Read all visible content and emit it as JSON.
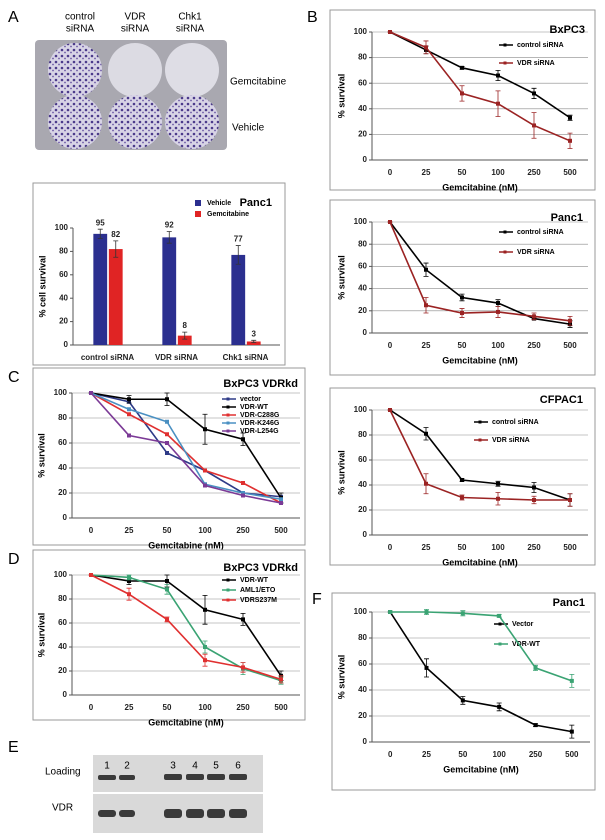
{
  "panel_labels": [
    "A",
    "B",
    "C",
    "D",
    "E",
    "F"
  ],
  "plate": {
    "columns": [
      [
        "control",
        "siRNA"
      ],
      [
        "VDR",
        "siRNA"
      ],
      [
        "Chk1",
        "siRNA"
      ]
    ],
    "rows": [
      "Gemcitabine",
      "Vehicle"
    ]
  },
  "blot": {
    "lanes": [
      "1",
      "2",
      "3",
      "4",
      "5",
      "6"
    ],
    "rows": [
      "Loading",
      "VDR"
    ]
  },
  "chart_data": [
    {
      "type": "bar",
      "title": "Panc1",
      "y_label": "% cell survival",
      "categories": [
        "control siRNA",
        "VDR siRNA",
        "Chk1 siRNA"
      ],
      "ylim": [
        0,
        100
      ],
      "yticks": [
        0,
        20,
        40,
        60,
        80,
        100
      ],
      "grid": false,
      "series": [
        {
          "name": "Vehicle",
          "color": "#2b2f8f",
          "values": [
            95,
            92,
            77
          ],
          "errors": [
            4,
            5,
            8
          ]
        },
        {
          "name": "Gemcitabine",
          "color": "#e02424",
          "values": [
            82,
            8,
            3
          ],
          "errors": [
            7,
            3,
            1
          ]
        }
      ]
    },
    {
      "type": "line",
      "title": "BxPC3",
      "x_label": "Gemcitabine (nM)",
      "y_label": "% survival",
      "categories": [
        "0",
        "25",
        "50",
        "100",
        "250",
        "500"
      ],
      "ylim": [
        0,
        100
      ],
      "yticks": [
        0,
        20,
        40,
        60,
        80,
        100
      ],
      "grid": true,
      "series": [
        {
          "name": "control siRNA",
          "color": "#000000",
          "values": [
            100,
            86,
            72,
            66,
            52,
            33
          ],
          "errors": [
            0,
            3,
            1,
            4,
            4,
            2
          ]
        },
        {
          "name": "VDR siRNA",
          "color": "#9b2323",
          "values": [
            100,
            88,
            52,
            44,
            27,
            15
          ],
          "errors": [
            0,
            5,
            6,
            10,
            10,
            6
          ]
        }
      ]
    },
    {
      "type": "line",
      "title": "Panc1",
      "x_label": "Gemcitabine (nM)",
      "y_label": "% survival",
      "categories": [
        "0",
        "25",
        "50",
        "100",
        "250",
        "500"
      ],
      "ylim": [
        0,
        100
      ],
      "yticks": [
        0,
        20,
        40,
        60,
        80,
        100
      ],
      "grid": true,
      "series": [
        {
          "name": "control siRNA",
          "color": "#000000",
          "values": [
            100,
            57,
            32,
            27,
            13,
            8
          ],
          "errors": [
            0,
            6,
            3,
            3,
            1,
            3
          ]
        },
        {
          "name": "VDR siRNA",
          "color": "#9b2323",
          "values": [
            100,
            25,
            18,
            19,
            15,
            11
          ],
          "errors": [
            0,
            7,
            4,
            5,
            3,
            4
          ]
        }
      ]
    },
    {
      "type": "line",
      "title": "CFPAC1",
      "x_label": "Gemcitabine (nM)",
      "y_label": "% survival",
      "categories": [
        "0",
        "25",
        "50",
        "100",
        "250",
        "500"
      ],
      "ylim": [
        0,
        100
      ],
      "yticks": [
        0,
        20,
        40,
        60,
        80,
        100
      ],
      "grid": true,
      "series": [
        {
          "name": "control siRNA",
          "color": "#000000",
          "values": [
            100,
            81,
            44,
            41,
            38,
            28
          ],
          "errors": [
            0,
            5,
            1,
            2,
            4,
            5
          ]
        },
        {
          "name": "VDR siRNA",
          "color": "#9b2323",
          "values": [
            100,
            41,
            30,
            29,
            28,
            28
          ],
          "errors": [
            0,
            8,
            2,
            5,
            3,
            5
          ]
        }
      ]
    },
    {
      "type": "line",
      "title": "BxPC3 VDRkd",
      "x_label": "Gemcitabine (nM)",
      "y_label": "% survival",
      "categories": [
        "0",
        "25",
        "50",
        "100",
        "250",
        "500"
      ],
      "ylim": [
        0,
        100
      ],
      "yticks": [
        0,
        20,
        40,
        60,
        80,
        100
      ],
      "grid": true,
      "series": [
        {
          "name": "vector",
          "color": "#2e3a87",
          "values": [
            100,
            93,
            52,
            38,
            20,
            17
          ]
        },
        {
          "name": "VDR-WT",
          "color": "#000000",
          "values": [
            100,
            95,
            95,
            71,
            63,
            16
          ],
          "errors": [
            0,
            3,
            5,
            12,
            5,
            4
          ]
        },
        {
          "name": "VDR-C288G",
          "color": "#e03030",
          "values": [
            100,
            83,
            67,
            38,
            28,
            12
          ]
        },
        {
          "name": "VDR-K246G",
          "color": "#4a90c2",
          "values": [
            100,
            87,
            77,
            27,
            20,
            15
          ]
        },
        {
          "name": "VDR-L254G",
          "color": "#7b3a96",
          "values": [
            100,
            66,
            60,
            26,
            18,
            12
          ]
        }
      ]
    },
    {
      "type": "line",
      "title": "BxPC3 VDRkd",
      "x_label": "Gemcitabine (nM)",
      "y_label": "% survival",
      "categories": [
        "0",
        "25",
        "50",
        "100",
        "250",
        "500"
      ],
      "ylim": [
        0,
        100
      ],
      "yticks": [
        0,
        20,
        40,
        60,
        80,
        100
      ],
      "grid": true,
      "series": [
        {
          "name": "VDR-WT",
          "color": "#000000",
          "values": [
            100,
            95,
            95,
            71,
            63,
            16
          ],
          "errors": [
            0,
            3,
            5,
            12,
            5,
            4
          ]
        },
        {
          "name": "AML1/ETO",
          "color": "#3aa373",
          "values": [
            100,
            98,
            88,
            40,
            22,
            12
          ],
          "errors": [
            0,
            2,
            4,
            5,
            5,
            3
          ]
        },
        {
          "name": "VDRS237M",
          "color": "#e03030",
          "values": [
            100,
            84,
            63,
            29,
            23,
            13
          ],
          "errors": [
            0,
            5,
            2,
            5,
            4,
            3
          ]
        }
      ]
    },
    {
      "type": "line",
      "title": "Panc1",
      "x_label": "Gemcitabine (nM)",
      "y_label": "% survival",
      "categories": [
        "0",
        "25",
        "50",
        "100",
        "250",
        "500"
      ],
      "ylim": [
        0,
        100
      ],
      "yticks": [
        0,
        20,
        40,
        60,
        80,
        100
      ],
      "grid": true,
      "series": [
        {
          "name": "Vector",
          "color": "#000000",
          "values": [
            100,
            57,
            32,
            27,
            13,
            8
          ],
          "errors": [
            0,
            7,
            3,
            3,
            1,
            5
          ]
        },
        {
          "name": "VDR-WT",
          "color": "#3aa373",
          "values": [
            100,
            100,
            99,
            97,
            57,
            47
          ],
          "errors": [
            0,
            2,
            2,
            1,
            2,
            5
          ]
        }
      ]
    }
  ]
}
